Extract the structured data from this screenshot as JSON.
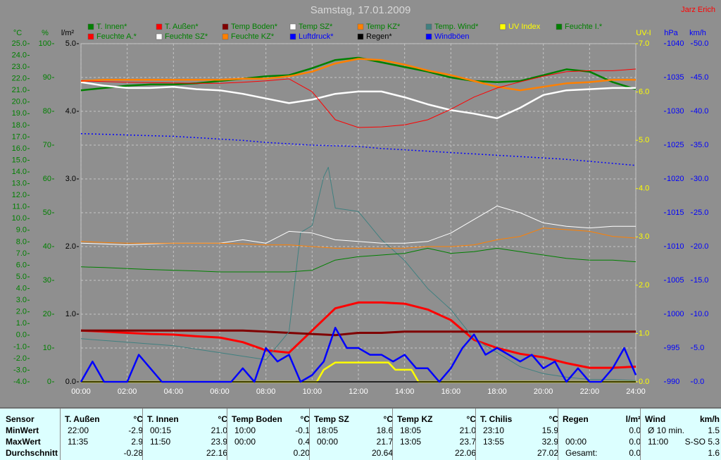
{
  "chart_data": {
    "type": "line",
    "title": "Samstag, 17.01.2009",
    "author": "Jarz Erich",
    "xlim": [
      0,
      24
    ],
    "xticks": [
      {
        "value": 0,
        "label": "00:00"
      },
      {
        "value": 2,
        "label": "02:00"
      },
      {
        "value": 4,
        "label": "04:00"
      },
      {
        "value": 6,
        "label": "06:00"
      },
      {
        "value": 8,
        "label": "08:00"
      },
      {
        "value": 10,
        "label": "10:00"
      },
      {
        "value": 12,
        "label": "12:00"
      },
      {
        "value": 14,
        "label": "14:00"
      },
      {
        "value": 16,
        "label": "16:00"
      },
      {
        "value": 18,
        "label": "18:00"
      },
      {
        "value": 20,
        "label": "20:00"
      },
      {
        "value": 22,
        "label": "22:00"
      },
      {
        "value": 24,
        "label": "24:00"
      }
    ],
    "grid": true,
    "x": [
      0,
      1,
      2,
      3,
      4,
      5,
      6,
      7,
      8,
      9,
      10,
      11,
      12,
      13,
      14,
      15,
      16,
      17,
      18,
      19,
      20,
      21,
      22,
      23,
      24
    ],
    "axes": [
      {
        "id": "c",
        "label": "°C",
        "color": "#008000",
        "side": "left",
        "ylim": [
          -4,
          25
        ],
        "yticks": [
          {
            "value": -4,
            "label": "-4.0"
          },
          {
            "value": -3,
            "label": "-3.0"
          },
          {
            "value": -2,
            "label": "-2.0"
          },
          {
            "value": -1,
            "label": "-1.0"
          },
          {
            "value": 0,
            "label": "0.0"
          },
          {
            "value": 1,
            "label": "1.0"
          },
          {
            "value": 2,
            "label": "2.0"
          },
          {
            "value": 3,
            "label": "3.0"
          },
          {
            "value": 4,
            "label": "4.0"
          },
          {
            "value": 5,
            "label": "5.0"
          },
          {
            "value": 6,
            "label": "6.0"
          },
          {
            "value": 7,
            "label": "7.0"
          },
          {
            "value": 8,
            "label": "8.0"
          },
          {
            "value": 9,
            "label": "9.0"
          },
          {
            "value": 10,
            "label": "10.0"
          },
          {
            "value": 11,
            "label": "11.0"
          },
          {
            "value": 12,
            "label": "12.0"
          },
          {
            "value": 13,
            "label": "13.0"
          },
          {
            "value": 14,
            "label": "14.0"
          },
          {
            "value": 15,
            "label": "15.0"
          },
          {
            "value": 16,
            "label": "16.0"
          },
          {
            "value": 17,
            "label": "17.0"
          },
          {
            "value": 18,
            "label": "18.0"
          },
          {
            "value": 19,
            "label": "19.0"
          },
          {
            "value": 20,
            "label": "20.0"
          },
          {
            "value": 21,
            "label": "21.0"
          },
          {
            "value": 22,
            "label": "22.0"
          },
          {
            "value": 23,
            "label": "23.0"
          },
          {
            "value": 24,
            "label": "24.0"
          },
          {
            "value": 25,
            "label": "25.0"
          }
        ]
      },
      {
        "id": "pct",
        "label": "%",
        "color": "#008000",
        "side": "left",
        "ylim": [
          0,
          100
        ],
        "yticks": [
          0,
          10,
          20,
          30,
          40,
          50,
          60,
          70,
          80,
          90,
          100
        ],
        "grid": true
      },
      {
        "id": "rain",
        "label": "l/m²",
        "color": "#000000",
        "side": "left",
        "ylim": [
          0,
          5
        ],
        "yticks": [
          {
            "value": 0,
            "label": "0.0"
          },
          {
            "value": 1,
            "label": "1.0"
          },
          {
            "value": 2,
            "label": "2.0"
          },
          {
            "value": 3,
            "label": "3.0"
          },
          {
            "value": 4,
            "label": "4.0"
          },
          {
            "value": 5,
            "label": "5.0"
          }
        ]
      },
      {
        "id": "uv",
        "label": "UV-I",
        "color": "#ffff00",
        "side": "right",
        "ylim": [
          0,
          7
        ],
        "yticks": [
          {
            "value": 0,
            "label": "0.0"
          },
          {
            "value": 1,
            "label": "1.0"
          },
          {
            "value": 2,
            "label": "2.0"
          },
          {
            "value": 3,
            "label": "3.0"
          },
          {
            "value": 4,
            "label": "4.0"
          },
          {
            "value": 5,
            "label": "5.0"
          },
          {
            "value": 6,
            "label": "6.0"
          },
          {
            "value": 7,
            "label": "7.0"
          }
        ]
      },
      {
        "id": "hpa",
        "label": "hPa",
        "color": "#0000ff",
        "side": "right",
        "ylim": [
          990,
          1040
        ],
        "yticks": [
          990,
          995,
          1000,
          1005,
          1010,
          1015,
          1020,
          1025,
          1030,
          1035,
          1040
        ]
      },
      {
        "id": "kmh",
        "label": "km/h",
        "color": "#0000ff",
        "side": "right",
        "ylim": [
          0,
          50
        ],
        "yticks": [
          {
            "value": 0,
            "label": "0.0"
          },
          {
            "value": 5,
            "label": "5.0"
          },
          {
            "value": 10,
            "label": "10.0"
          },
          {
            "value": 15,
            "label": "15.0"
          },
          {
            "value": 20,
            "label": "20.0"
          },
          {
            "value": 25,
            "label": "25.0"
          },
          {
            "value": 30,
            "label": "30.0"
          },
          {
            "value": 35,
            "label": "35.0"
          },
          {
            "value": 40,
            "label": "40.0"
          },
          {
            "value": 45,
            "label": "45.0"
          },
          {
            "value": 50,
            "label": "50.0"
          }
        ]
      }
    ],
    "series": [
      {
        "name": "T. Innen*",
        "color": "#008000",
        "axis": "c",
        "width": 2.5,
        "values": [
          21.0,
          21.2,
          21.4,
          21.5,
          21.5,
          21.6,
          21.8,
          22.0,
          22.2,
          22.3,
          22.9,
          23.6,
          23.8,
          23.4,
          23.0,
          22.6,
          22.1,
          21.8,
          21.7,
          21.8,
          22.3,
          22.8,
          22.6,
          21.7,
          21.1
        ]
      },
      {
        "name": "T. Außen*",
        "color": "#ff0000",
        "axis": "c",
        "width": 3,
        "values": [
          0.4,
          0.3,
          0.2,
          0.1,
          0.05,
          -0.1,
          -0.2,
          -0.6,
          -1.3,
          -1.5,
          0.4,
          2.3,
          2.8,
          2.8,
          2.7,
          2.2,
          1.3,
          -0.4,
          -1.1,
          -1.6,
          -1.9,
          -2.4,
          -2.8,
          -2.8,
          -2.7
        ]
      },
      {
        "name": "Temp Boden*",
        "color": "#800000",
        "axis": "c",
        "width": 3,
        "values": [
          0.4,
          0.4,
          0.4,
          0.4,
          0.4,
          0.4,
          0.4,
          0.4,
          0.3,
          0.2,
          0.1,
          0.0,
          0.2,
          0.2,
          0.3,
          0.3,
          0.3,
          0.3,
          0.3,
          0.3,
          0.3,
          0.3,
          0.3,
          0.3,
          0.3
        ]
      },
      {
        "name": "Temp SZ*",
        "color": "#ffffff",
        "axis": "c",
        "width": 2.5,
        "values": [
          21.7,
          21.4,
          21.2,
          21.2,
          21.3,
          21.1,
          21.0,
          20.7,
          20.3,
          19.9,
          20.2,
          20.7,
          20.9,
          20.9,
          20.4,
          19.8,
          19.3,
          19.0,
          18.6,
          19.5,
          20.6,
          21.0,
          21.1,
          21.2,
          21.2
        ]
      },
      {
        "name": "Temp KZ*",
        "color": "#ff8000",
        "axis": "c",
        "width": 2.5,
        "values": [
          21.8,
          21.9,
          21.9,
          21.9,
          21.9,
          21.9,
          21.9,
          22.0,
          22.0,
          22.2,
          22.6,
          23.3,
          23.7,
          23.6,
          23.2,
          22.7,
          22.3,
          21.8,
          21.3,
          21.0,
          21.3,
          21.6,
          21.7,
          21.9,
          21.9
        ]
      },
      {
        "name": "Temp. Wind*",
        "color": "#408080",
        "axis": "c",
        "width": 1,
        "x": [
          0,
          2,
          4,
          6,
          7,
          8,
          9,
          9.5,
          10,
          10.5,
          10.7,
          11,
          12,
          13,
          14,
          15,
          16,
          17,
          18,
          19,
          20,
          21,
          22,
          23,
          24
        ],
        "values": [
          -0.3,
          -0.6,
          -0.9,
          -1.5,
          -1.8,
          -2.1,
          0.3,
          8.8,
          9.4,
          13.6,
          14.4,
          10.9,
          10.6,
          8.2,
          6.4,
          4.0,
          2.2,
          -0.3,
          -1.5,
          -2.7,
          -3.3,
          -3.6,
          -3.8,
          -3.8,
          -3.9
        ]
      },
      {
        "name": "UV Index",
        "color": "#ffff00",
        "axis": "uv",
        "width": 2.5,
        "x": [
          0,
          10.2,
          10.5,
          11,
          13.3,
          13.6,
          14.3,
          14.6,
          24
        ],
        "values": [
          0,
          0,
          0.25,
          0.4,
          0.4,
          0.25,
          0.25,
          0,
          0
        ]
      },
      {
        "name": "Feuchte I.*",
        "color": "#008000",
        "axis": "pct",
        "width": 1,
        "values": [
          34,
          33.8,
          33.5,
          33.2,
          33,
          32.8,
          32.5,
          32.5,
          32.5,
          32.5,
          33,
          36,
          37,
          37.5,
          38,
          39.5,
          38,
          38.5,
          39.5,
          38.5,
          37.5,
          36.5,
          36,
          36,
          35.5
        ]
      },
      {
        "name": "Feuchte A.*",
        "color": "#ff0000",
        "axis": "pct",
        "width": 1,
        "values": [
          89,
          88.8,
          88.6,
          88.5,
          88.4,
          88.3,
          88.3,
          88.6,
          89,
          89.6,
          85.8,
          77.5,
          75.2,
          75.4,
          76,
          77.5,
          80.6,
          84.2,
          86.9,
          88.7,
          90.4,
          91.7,
          92,
          92,
          92.5
        ]
      },
      {
        "name": "Feuchte SZ*",
        "color": "#ffffff",
        "axis": "pct",
        "width": 1,
        "values": [
          41,
          40.8,
          40.5,
          40.8,
          41,
          41,
          41,
          42,
          41,
          44.5,
          44,
          42,
          41.5,
          41,
          41,
          41.5,
          44,
          48,
          52,
          50,
          47,
          46,
          45.5,
          46,
          46
        ]
      },
      {
        "name": "Feuchte KZ*",
        "color": "#ff8000",
        "axis": "pct",
        "width": 1,
        "values": [
          41.5,
          41.2,
          41,
          41,
          41,
          41,
          41,
          40.8,
          40.5,
          40.5,
          40,
          39.5,
          39.5,
          39.5,
          39.5,
          40,
          40,
          40.5,
          42,
          43,
          45.5,
          45,
          44.5,
          43,
          42.5
        ]
      },
      {
        "name": "Luftdruck*",
        "color": "#0000ff",
        "axis": "hpa",
        "width": 1.5,
        "dash": true,
        "values": [
          1026.7,
          1026.6,
          1026.5,
          1026.4,
          1026.3,
          1026.1,
          1025.9,
          1025.7,
          1025.4,
          1025.2,
          1025.0,
          1024.9,
          1024.8,
          1024.5,
          1024.3,
          1024.1,
          1023.9,
          1023.7,
          1023.5,
          1023.3,
          1023.1,
          1022.9,
          1022.6,
          1022.3,
          1022.0
        ]
      },
      {
        "name": "Regen*",
        "color": "#000000",
        "axis": "rain",
        "width": 1.5,
        "values": [
          0,
          0,
          0,
          0,
          0,
          0,
          0,
          0,
          0,
          0,
          0,
          0,
          0,
          0,
          0,
          0,
          0,
          0,
          0,
          0,
          0,
          0,
          0,
          0,
          0
        ]
      },
      {
        "name": "Windböen",
        "color": "#0000ff",
        "axis": "kmh",
        "width": 2.5,
        "x": [
          0,
          0.5,
          1,
          1.5,
          2,
          2.5,
          3,
          3.5,
          4,
          4.5,
          5,
          5.5,
          6,
          6.5,
          7,
          7.5,
          8,
          8.5,
          9,
          9.5,
          10,
          10.5,
          11,
          11.5,
          12,
          12.5,
          13,
          13.5,
          14,
          14.5,
          15,
          15.5,
          16,
          16.5,
          17,
          17.5,
          18,
          18.5,
          19,
          19.5,
          20,
          20.5,
          21,
          21.5,
          22,
          22.5,
          23,
          23.5,
          24
        ],
        "values": [
          0,
          3,
          0,
          0,
          0,
          4,
          2,
          0,
          0,
          0,
          0,
          0,
          0,
          0,
          2,
          0,
          5,
          3,
          4,
          0,
          1,
          3,
          8,
          5,
          5,
          4,
          4,
          3,
          4,
          2,
          2,
          0,
          2,
          5,
          7,
          4,
          5,
          4,
          3,
          4,
          2,
          3,
          0,
          2,
          0,
          0,
          2,
          5,
          1
        ]
      }
    ]
  },
  "stats": {
    "row_labels": [
      "Sensor",
      "MinWert",
      "MaxWert",
      "Durchschnitt"
    ],
    "columns": [
      {
        "name": "T. Außen",
        "unit": "°C",
        "rows": [
          {
            "time": "22:00",
            "value": "-2.9"
          },
          {
            "time": "11:35",
            "value": "2.9"
          },
          {
            "value": "-0.28"
          }
        ]
      },
      {
        "name": "T. Innen",
        "unit": "°C",
        "rows": [
          {
            "time": "00:15",
            "value": "21.0"
          },
          {
            "time": "11:50",
            "value": "23.9"
          },
          {
            "value": "22.16"
          }
        ]
      },
      {
        "name": "Temp Boden",
        "unit": "°C",
        "rows": [
          {
            "time": "10:00",
            "value": "-0.1"
          },
          {
            "time": "00:00",
            "value": "0.4"
          },
          {
            "value": "0.20"
          }
        ]
      },
      {
        "name": "Temp SZ",
        "unit": "°C",
        "rows": [
          {
            "time": "18:05",
            "value": "18.6"
          },
          {
            "time": "00:00",
            "value": "21.7"
          },
          {
            "value": "20.64"
          }
        ]
      },
      {
        "name": "Temp KZ",
        "unit": "°C",
        "rows": [
          {
            "time": "18:05",
            "value": "21.0"
          },
          {
            "time": "13:05",
            "value": "23.7"
          },
          {
            "value": "22.06"
          }
        ]
      },
      {
        "name": "T. Chilis",
        "unit": "°C",
        "rows": [
          {
            "time": "23:10",
            "value": "15.9"
          },
          {
            "time": "13:55",
            "value": "32.9"
          },
          {
            "value": "27.02"
          }
        ]
      },
      {
        "name": "Regen",
        "unit": "l/m²",
        "rows": [
          {
            "value": "0.0"
          },
          {
            "time": "00:00",
            "value": "0.0"
          },
          {
            "time": "Gesamt:",
            "value": "0.0"
          }
        ]
      },
      {
        "name": "Wind",
        "unit": "km/h",
        "rows": [
          {
            "time": "Ø 10 min.",
            "value": "1.5"
          },
          {
            "time": "11:00",
            "value": "S-SO 5.3"
          },
          {
            "value": "1.6"
          }
        ]
      }
    ]
  }
}
